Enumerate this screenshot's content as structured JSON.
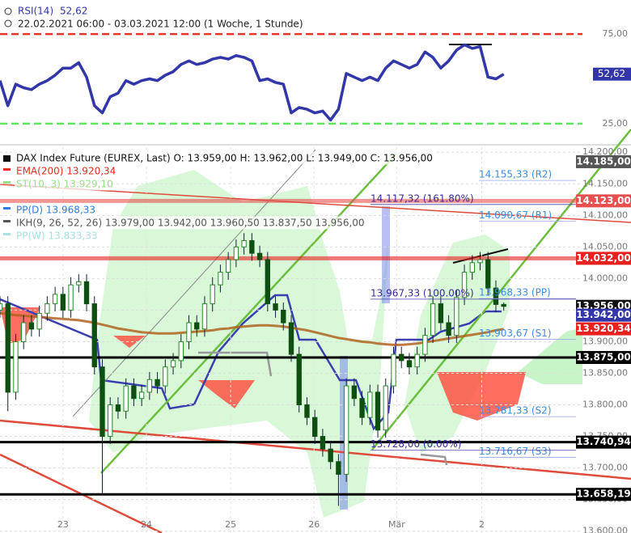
{
  "chart_data": [
    {
      "type": "line",
      "title": "RSI(14)",
      "subtitle": "22.02.2021 06:00 - 03.03.2021 12:00  (1 Woche, 1 Stunde)",
      "series": [
        {
          "name": "RSI(14)",
          "color": "#3236a8",
          "x": [
            0,
            1,
            2,
            3,
            4,
            5,
            6,
            7,
            8,
            9,
            10,
            11,
            12,
            13,
            14,
            15,
            16,
            17,
            18,
            19,
            20,
            21,
            22,
            23,
            24,
            25,
            26,
            27,
            28,
            29,
            30,
            31,
            32,
            33,
            34,
            35,
            36,
            37,
            38,
            39,
            40,
            41,
            42,
            43,
            44,
            45,
            46,
            47,
            48,
            49,
            50,
            51,
            52,
            53,
            54,
            55,
            56,
            57,
            58,
            59,
            60,
            61,
            62,
            63,
            64
          ],
          "values": [
            49,
            35,
            47,
            45,
            44,
            47,
            49,
            52,
            56,
            56,
            59,
            51,
            35,
            31,
            40,
            42,
            49,
            47,
            49,
            50,
            49,
            52,
            54,
            58,
            60,
            58,
            59,
            61,
            62,
            61,
            63,
            62,
            60,
            49,
            50,
            48,
            47,
            31,
            34,
            33,
            31,
            32,
            27,
            33,
            53,
            51,
            49,
            51,
            49,
            56,
            60,
            58,
            56,
            58,
            65,
            62,
            56,
            60,
            66,
            69,
            67,
            68,
            51,
            50,
            52.62
          ],
          "value_label": "52,62"
        }
      ],
      "xlim": [
        0,
        74
      ],
      "ylim": [
        15,
        94
      ],
      "yticks": [
        {
          "value": 75,
          "label": "75,00"
        },
        {
          "value": 25,
          "label": "25,00"
        }
      ],
      "grid_colors": [
        "#e8352a",
        "#5ee85e"
      ]
    },
    {
      "type": "candlestick",
      "legend": [
        "DAX Index Future (EUREX, Last)  O: 13.959,00  H: 13.962,00  L: 13.949,00  C: 13.956,00",
        "EMA(200)  13.920,34",
        "ST(10, 3)  13.929,10",
        "PP(D)  13.968,33",
        "IKH(9, 26, 52, 26)  13.979,00  13.942,00  13.960,50  13.837,50  13.956,00",
        "PP(W)  13.833,33"
      ],
      "legend_colors": [
        "#111111",
        "#e03020",
        "#9adf8a",
        "#2f7fd8",
        "#555555",
        "#a8e0e0"
      ],
      "x": [
        0,
        1,
        2,
        3,
        4,
        5,
        6,
        7,
        8,
        9,
        10,
        11,
        12,
        13,
        14,
        15,
        16,
        17,
        18,
        19,
        20,
        21,
        22,
        23,
        24,
        25,
        26,
        27,
        28,
        29,
        30,
        31,
        32,
        33,
        34,
        35,
        36,
        37,
        38,
        39,
        40,
        41,
        42,
        43,
        44,
        45,
        46,
        47,
        48,
        49,
        50,
        51,
        52,
        53,
        54,
        55,
        56,
        57,
        58,
        59,
        60,
        61,
        62,
        63,
        64
      ],
      "open": [
        13950,
        13960,
        13820,
        13900,
        13930,
        13920,
        13945,
        13960,
        13975,
        13950,
        13990,
        13995,
        13960,
        13860,
        13750,
        13800,
        13790,
        13830,
        13810,
        13820,
        13840,
        13830,
        13860,
        13870,
        13900,
        13930,
        13920,
        13960,
        13990,
        14010,
        14030,
        14050,
        14060,
        14040,
        14030,
        13960,
        13950,
        13930,
        13880,
        13800,
        13780,
        13750,
        13730,
        13710,
        13690,
        13830,
        13810,
        13780,
        13820,
        13760,
        13830,
        13880,
        13870,
        13860,
        13880,
        13910,
        13960,
        13930,
        13910,
        13970,
        14010,
        14025,
        14030,
        13985,
        13959
      ],
      "high": [
        13972,
        13972,
        13912,
        13942,
        13942,
        13957,
        13972,
        13987,
        13987,
        14002,
        14007,
        14007,
        13972,
        13872,
        13812,
        13812,
        13842,
        13842,
        13832,
        13852,
        13852,
        13872,
        13882,
        13912,
        13942,
        13942,
        13972,
        14002,
        14022,
        14042,
        14062,
        14072,
        14072,
        14052,
        14042,
        13972,
        13962,
        13942,
        13892,
        13812,
        13792,
        13762,
        13742,
        13722,
        13842,
        13842,
        13822,
        13832,
        13832,
        13842,
        13892,
        13892,
        13882,
        13892,
        13922,
        13972,
        13972,
        13942,
        13982,
        14022,
        14037,
        14042,
        14042,
        13997,
        13962
      ],
      "low": [
        13938,
        13790,
        13808,
        13888,
        13908,
        13908,
        13933,
        13948,
        13938,
        13938,
        13978,
        13948,
        13848,
        13660,
        13738,
        13778,
        13778,
        13798,
        13798,
        13808,
        13818,
        13818,
        13848,
        13858,
        13888,
        13908,
        13908,
        13948,
        13978,
        13998,
        14018,
        14038,
        14028,
        14018,
        13948,
        13938,
        13918,
        13868,
        13788,
        13768,
        13738,
        13718,
        13698,
        13640,
        13678,
        13798,
        13768,
        13768,
        13748,
        13748,
        13818,
        13858,
        13848,
        13848,
        13868,
        13898,
        13918,
        13898,
        13898,
        13958,
        13998,
        14013,
        13973,
        13947,
        13949
      ],
      "close": [
        13960,
        13820,
        13900,
        13930,
        13920,
        13945,
        13960,
        13975,
        13950,
        13990,
        13995,
        13960,
        13860,
        13750,
        13800,
        13790,
        13830,
        13810,
        13820,
        13840,
        13830,
        13860,
        13870,
        13900,
        13930,
        13920,
        13960,
        13990,
        14010,
        14030,
        14050,
        14060,
        14040,
        14030,
        13960,
        13950,
        13930,
        13880,
        13800,
        13780,
        13750,
        13730,
        13710,
        13690,
        13830,
        13810,
        13780,
        13820,
        13760,
        13830,
        13880,
        13870,
        13860,
        13880,
        13910,
        13960,
        13930,
        13910,
        13970,
        14010,
        14025,
        14030,
        13985,
        13959,
        13956
      ],
      "up_color": "#2a8a2a",
      "down_color": "#0f4f12",
      "ema": {
        "color": "#b0641e",
        "values": [
          13945,
          13944,
          13942,
          13941,
          13940,
          13939,
          13938,
          13937,
          13936,
          13935,
          13934,
          13932,
          13930,
          13927,
          13924,
          13921,
          13919,
          13917,
          13915,
          13914,
          13913,
          13913,
          13913,
          13914,
          13915,
          13916,
          13917,
          13918,
          13920,
          13921,
          13923,
          13924,
          13925,
          13926,
          13926,
          13925,
          13924,
          13922,
          13920,
          13918,
          13915,
          13912,
          13909,
          13906,
          13904,
          13902,
          13900,
          13899,
          13897,
          13896,
          13895,
          13895,
          13896,
          13897,
          13899,
          13901,
          13903,
          13905,
          13907,
          13909,
          13911,
          13913,
          13915,
          13918,
          13920
        ]
      },
      "levels": [
        {
          "value": 14185,
          "label": "14.185,00",
          "color": "#555555",
          "line": false
        },
        {
          "value": 14123,
          "label": "14.123,00",
          "color": "#e85050",
          "line": true
        },
        {
          "value": 14032,
          "label": "14.032,00",
          "color": "#e8201e",
          "line": true
        },
        {
          "value": 13956,
          "label": "13.956,00",
          "color": "#111111",
          "line": false
        },
        {
          "value": 13942,
          "label": "13.942,00",
          "color": "#3236a8",
          "line": false
        },
        {
          "value": 13920.34,
          "label": "13.920,34",
          "color": "#e8201e",
          "line": false
        },
        {
          "value": 13875,
          "label": "13.875,00",
          "color": "#000000",
          "line": true
        },
        {
          "value": 13740.94,
          "label": "13.740,94",
          "color": "#000000",
          "line": true
        },
        {
          "value": 13658.19,
          "label": "13.658,19",
          "color": "#000000",
          "line": true
        }
      ],
      "pivots": [
        {
          "value": 14155.33,
          "label": "14.155,33 (R2)"
        },
        {
          "value": 14090.67,
          "label": "14.090,67 (R1)"
        },
        {
          "value": 13968.33,
          "label": "13.968,33 (PP)"
        },
        {
          "value": 13903.67,
          "label": "13.903,67 (S1)"
        },
        {
          "value": 13781.33,
          "label": "13.781,33 (S2)"
        },
        {
          "value": 13716.67,
          "label": "13.716,67 (S3)"
        }
      ],
      "fibo": [
        {
          "value": 14117.32,
          "label": "14.117,32 (161.80%)"
        },
        {
          "value": 13967.33,
          "label": "13.967,33 (100.00%)"
        },
        {
          "value": 13728,
          "label": "13.728,00 (0.00%)"
        }
      ],
      "xlim": [
        0,
        74
      ],
      "xticks": [
        {
          "value": 8,
          "label": "23"
        },
        {
          "value": 18.6,
          "label": "24"
        },
        {
          "value": 29.3,
          "label": "25"
        },
        {
          "value": 39.9,
          "label": "26"
        },
        {
          "value": 50.4,
          "label": "Mär"
        },
        {
          "value": 61.2,
          "label": "2"
        }
      ],
      "ylim": [
        13597,
        14208
      ],
      "yticks": [
        {
          "value": 13600,
          "label": "13.600,00"
        },
        {
          "value": 13650,
          "label": "13.650,00"
        },
        {
          "value": 13700,
          "label": "13.700,00"
        },
        {
          "value": 13750,
          "label": "13.750,00"
        },
        {
          "value": 13800,
          "label": "13.800,00"
        },
        {
          "value": 13850,
          "label": "13.850,00"
        },
        {
          "value": 13900,
          "label": "13.900,00"
        },
        {
          "value": 13950,
          "label": "13.950,00"
        },
        {
          "value": 14000,
          "label": "14.000,00"
        },
        {
          "value": 14050,
          "label": "14.050,00"
        },
        {
          "value": 14100,
          "label": "14.100,00"
        },
        {
          "value": 14150,
          "label": "14.150,00"
        },
        {
          "value": 14200,
          "label": "14.200,00"
        }
      ],
      "grid": true
    }
  ]
}
